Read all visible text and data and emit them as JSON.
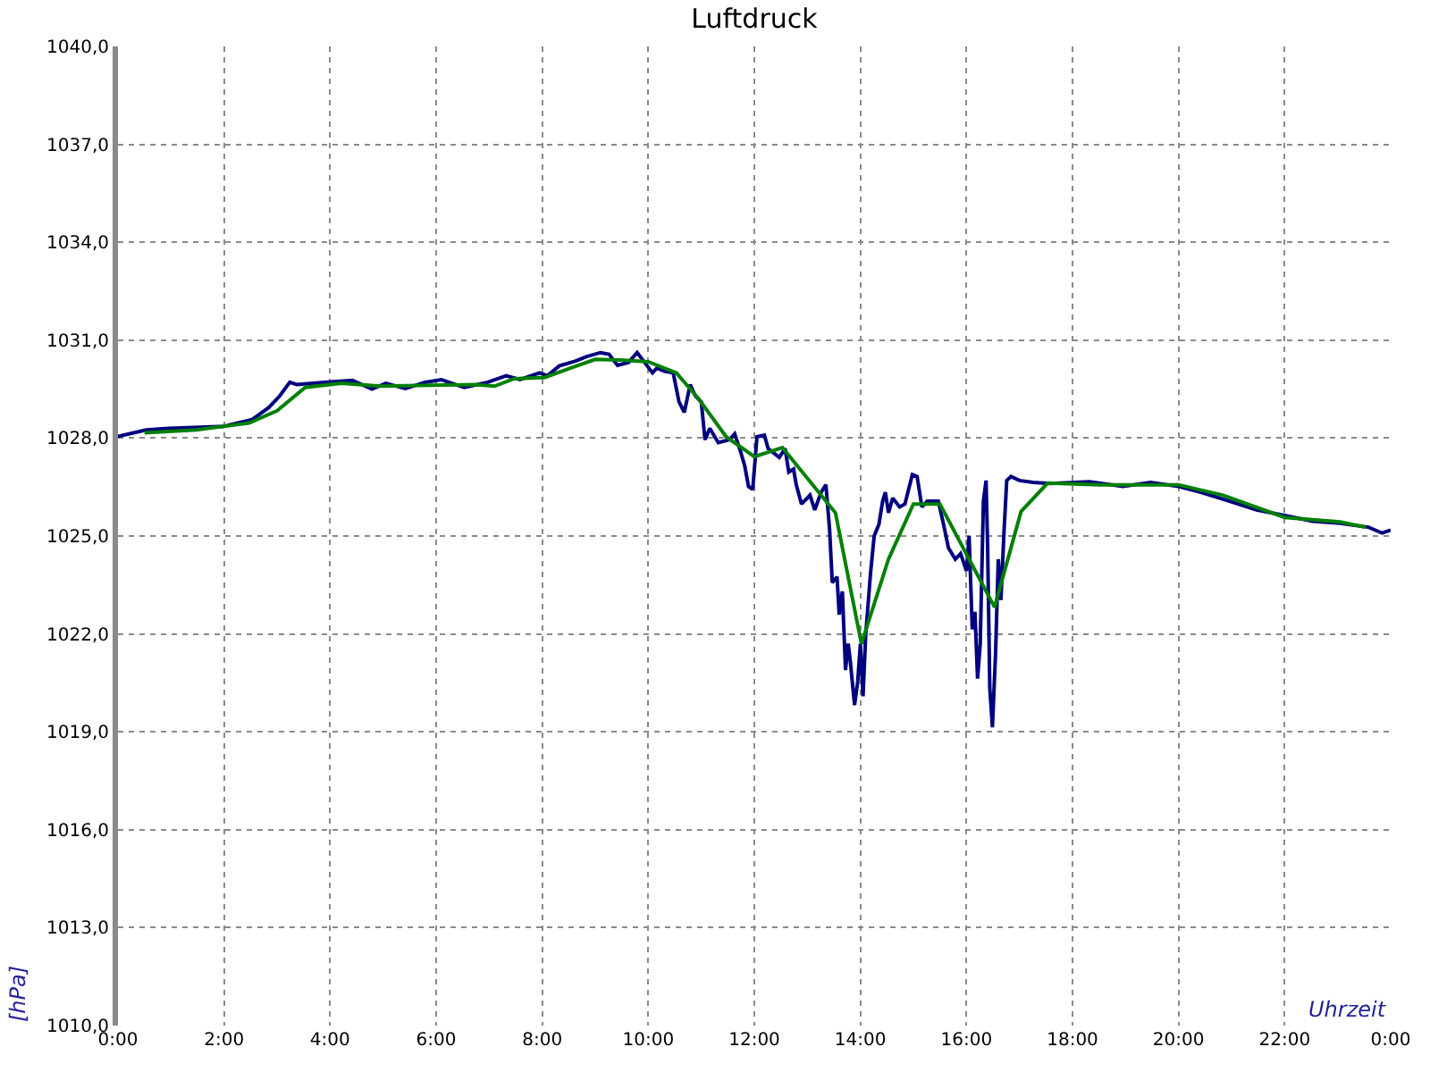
{
  "chart_data": {
    "type": "line",
    "title": "Luftdruck",
    "xlabel": "Uhrzeit",
    "ylabel": "[hPa]",
    "xlim": [
      0,
      24
    ],
    "xticks": [
      {
        "value": 0,
        "label": "0:00"
      },
      {
        "value": 2,
        "label": "2:00"
      },
      {
        "value": 4,
        "label": "4:00"
      },
      {
        "value": 6,
        "label": "6:00"
      },
      {
        "value": 8,
        "label": "8:00"
      },
      {
        "value": 10,
        "label": "10:00"
      },
      {
        "value": 12,
        "label": "12:00"
      },
      {
        "value": 14,
        "label": "14:00"
      },
      {
        "value": 16,
        "label": "16:00"
      },
      {
        "value": 18,
        "label": "18:00"
      },
      {
        "value": 20,
        "label": "20:00"
      },
      {
        "value": 22,
        "label": "22:00"
      },
      {
        "value": 24,
        "label": "0:00"
      }
    ],
    "ylim": [
      1010,
      1040
    ],
    "yticks": [
      {
        "value": 1010,
        "label": "1010,0"
      },
      {
        "value": 1013,
        "label": "1013,0"
      },
      {
        "value": 1016,
        "label": "1016,0"
      },
      {
        "value": 1019,
        "label": "1019,0"
      },
      {
        "value": 1022,
        "label": "1022,0"
      },
      {
        "value": 1025,
        "label": "1025,0"
      },
      {
        "value": 1028,
        "label": "1028,0"
      },
      {
        "value": 1031,
        "label": "1031,0"
      },
      {
        "value": 1034,
        "label": "1034,0"
      },
      {
        "value": 1037,
        "label": "1037,0"
      },
      {
        "value": 1040,
        "label": "1040,0"
      }
    ],
    "grid": true,
    "line_style": "solid",
    "series": [
      {
        "color": "#000080",
        "x": [
          0,
          0.53,
          0.95,
          2.0,
          2.53,
          2.84,
          3.05,
          3.24,
          3.37,
          3.89,
          4.42,
          4.79,
          5.05,
          5.42,
          5.79,
          6.1,
          6.53,
          6.95,
          7.32,
          7.58,
          7.95,
          8.1,
          8.32,
          8.63,
          8.84,
          9.1,
          9.26,
          9.42,
          9.63,
          9.79,
          9.89,
          10.08,
          10.16,
          10.32,
          10.47,
          10.58,
          10.68,
          10.79,
          10.89,
          11.0,
          11.07,
          11.16,
          11.32,
          11.53,
          11.63,
          11.74,
          11.82,
          11.89,
          11.97,
          12.05,
          12.19,
          12.26,
          12.47,
          12.58,
          12.65,
          12.74,
          12.79,
          12.89,
          13.05,
          13.14,
          13.26,
          13.35,
          13.42,
          13.47,
          13.56,
          13.6,
          13.66,
          13.72,
          13.77,
          13.81,
          13.89,
          13.95,
          14.0,
          14.05,
          14.1,
          14.19,
          14.26,
          14.35,
          14.42,
          14.47,
          14.53,
          14.61,
          14.74,
          14.84,
          14.98,
          15.07,
          15.16,
          15.26,
          15.47,
          15.58,
          15.66,
          15.79,
          15.89,
          16.0,
          16.05,
          16.11,
          16.16,
          16.21,
          16.26,
          16.32,
          16.37,
          16.4,
          16.44,
          16.49,
          16.55,
          16.6,
          16.65,
          16.71,
          16.76,
          16.84,
          17.0,
          17.26,
          17.58,
          18.32,
          18.95,
          19.47,
          20.0,
          20.42,
          20.95,
          21.47,
          22.0,
          22.53,
          23.05,
          23.58,
          23.84,
          24.0
        ],
        "values": [
          1028.05,
          1028.25,
          1028.3,
          1028.36,
          1028.57,
          1028.93,
          1029.29,
          1029.71,
          1029.64,
          1029.71,
          1029.77,
          1029.5,
          1029.68,
          1029.52,
          1029.71,
          1029.79,
          1029.55,
          1029.7,
          1029.91,
          1029.79,
          1030.0,
          1029.91,
          1030.21,
          1030.36,
          1030.5,
          1030.62,
          1030.57,
          1030.23,
          1030.32,
          1030.62,
          1030.41,
          1030.0,
          1030.14,
          1030.04,
          1030.0,
          1029.11,
          1028.79,
          1029.64,
          1029.29,
          1029.11,
          1027.95,
          1028.3,
          1027.86,
          1027.95,
          1028.13,
          1027.59,
          1027.14,
          1026.52,
          1026.43,
          1028.04,
          1028.09,
          1027.68,
          1027.41,
          1027.68,
          1026.96,
          1027.05,
          1026.57,
          1025.98,
          1026.25,
          1025.8,
          1026.34,
          1026.57,
          1025.18,
          1023.57,
          1023.75,
          1022.59,
          1023.3,
          1020.89,
          1021.7,
          1021.16,
          1019.82,
          1020.54,
          1021.7,
          1020.09,
          1021.96,
          1023.84,
          1025.0,
          1025.36,
          1026.07,
          1026.34,
          1025.71,
          1026.16,
          1025.89,
          1025.98,
          1026.88,
          1026.82,
          1025.89,
          1026.07,
          1026.07,
          1025.27,
          1024.64,
          1024.29,
          1024.46,
          1023.93,
          1025.0,
          1022.14,
          1022.68,
          1020.63,
          1021.7,
          1026.07,
          1026.7,
          1024.64,
          1020.36,
          1019.14,
          1021.43,
          1024.29,
          1023.04,
          1025.18,
          1026.7,
          1026.82,
          1026.7,
          1026.64,
          1026.61,
          1026.66,
          1026.52,
          1026.64,
          1026.52,
          1026.34,
          1026.07,
          1025.8,
          1025.63,
          1025.45,
          1025.39,
          1025.27,
          1025.09,
          1025.18
        ]
      },
      {
        "color": "#008000",
        "x": [
          0.5,
          1.47,
          2.47,
          3.0,
          3.53,
          4.21,
          4.95,
          6.74,
          7.1,
          7.47,
          8.05,
          8.53,
          9.0,
          9.47,
          10.0,
          10.53,
          10.95,
          11.47,
          12.0,
          12.53,
          13.53,
          14.02,
          14.53,
          15.0,
          15.5,
          16.53,
          17.03,
          17.53,
          18.53,
          20.0,
          20.84,
          22.0,
          23.05,
          23.53
        ],
        "values": [
          1028.16,
          1028.25,
          1028.46,
          1028.84,
          1029.55,
          1029.68,
          1029.59,
          1029.64,
          1029.59,
          1029.82,
          1029.86,
          1030.14,
          1030.41,
          1030.39,
          1030.34,
          1030.0,
          1029.2,
          1028.04,
          1027.43,
          1027.71,
          1025.71,
          1021.7,
          1024.29,
          1025.98,
          1025.98,
          1022.82,
          1025.75,
          1026.62,
          1026.57,
          1026.57,
          1026.25,
          1025.57,
          1025.43,
          1025.27
        ]
      }
    ]
  }
}
